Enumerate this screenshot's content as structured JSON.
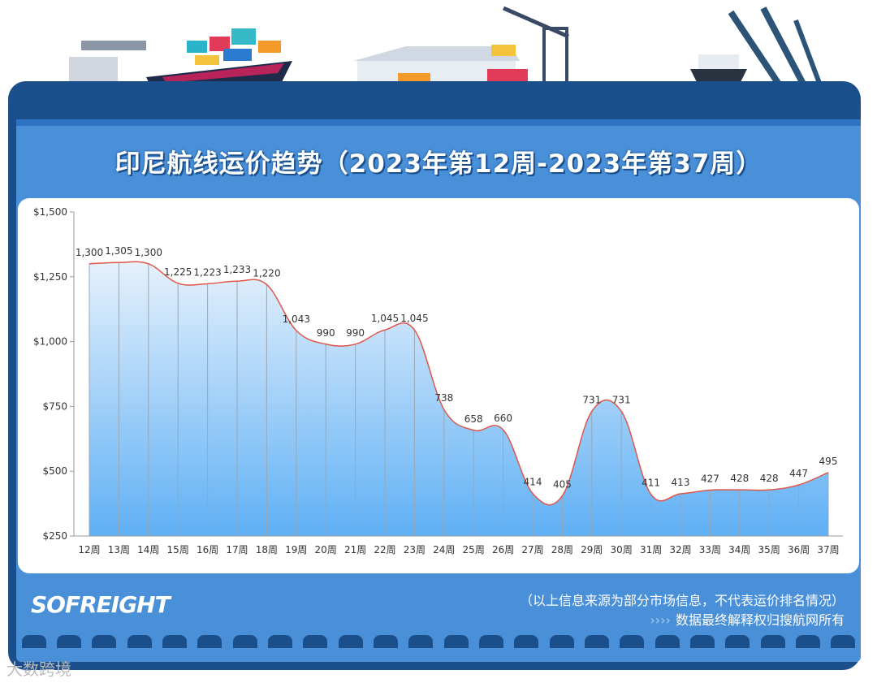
{
  "title": "印尼航线运价趋势（2023年第12周-2023年第37周）",
  "brand": "SOFREIGHT",
  "notes": {
    "source": "（以上信息来源为部分市场信息，不代表运价排名情况）",
    "arrows": "››››",
    "rights": "数据最终解释权归搜航网所有"
  },
  "watermark": "大数跨境",
  "colors": {
    "line": "#e0574a",
    "area_top": "#e6f1fc",
    "area_bottom": "#5fb0f5",
    "frame": "#1a4f8c",
    "panel": "#4a90d9"
  },
  "chart_data": {
    "type": "area",
    "categories": [
      "12周",
      "13周",
      "14周",
      "15周",
      "16周",
      "17周",
      "18周",
      "19周",
      "20周",
      "21周",
      "22周",
      "23周",
      "24周",
      "25周",
      "26周",
      "27周",
      "28周",
      "29周",
      "30周",
      "31周",
      "32周",
      "33周",
      "34周",
      "35周",
      "36周",
      "37周"
    ],
    "values": [
      1300,
      1305,
      1300,
      1225,
      1223,
      1233,
      1220,
      1043,
      990,
      990,
      1045,
      1045,
      738,
      658,
      660,
      414,
      405,
      731,
      731,
      411,
      413,
      427,
      428,
      428,
      447,
      495
    ],
    "data_labels": [
      "1,300",
      "1,305",
      "1,300",
      "1,225",
      "1,223",
      "1,233",
      "1,220",
      "1,043",
      "990",
      "990",
      "1,045",
      "1,045",
      "738",
      "658",
      "660",
      "414",
      "405",
      "731",
      "731",
      "411",
      "413",
      "427",
      "428",
      "428",
      "447",
      "495"
    ],
    "ylim": [
      250,
      1500
    ],
    "yticks": [
      250,
      500,
      750,
      1000,
      1250,
      1500
    ],
    "ytick_labels": [
      "$250",
      "$500",
      "$750",
      "$1,000",
      "$1,250",
      "$1,500"
    ],
    "smooth": true,
    "grid": false
  }
}
